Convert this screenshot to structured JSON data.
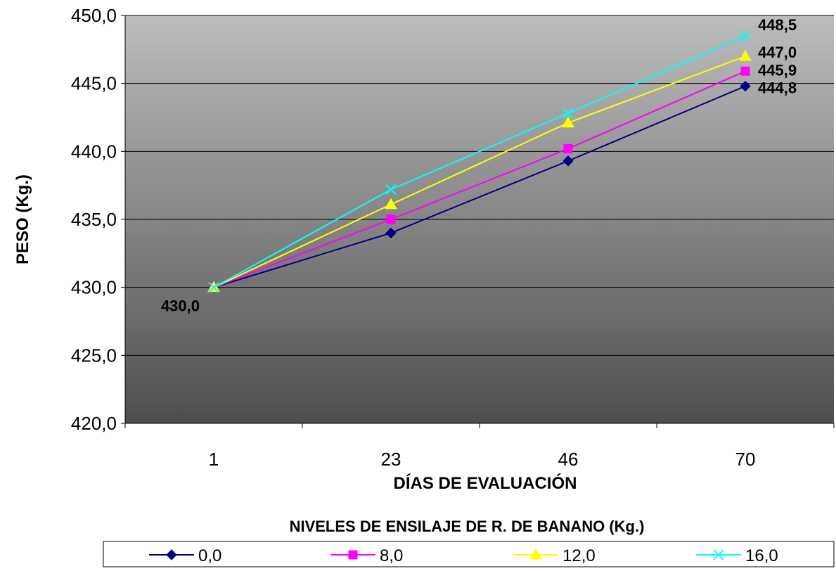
{
  "chart_data": {
    "type": "line",
    "categories": [
      "1",
      "23",
      "46",
      "70"
    ],
    "series": [
      {
        "name": "0,0",
        "values": [
          430.0,
          434.0,
          439.3,
          444.8
        ],
        "color": "#000080",
        "marker": "diamond"
      },
      {
        "name": "8,0",
        "values": [
          430.0,
          435.0,
          440.2,
          445.9
        ],
        "color": "#ff00ff",
        "marker": "square"
      },
      {
        "name": "12,0",
        "values": [
          430.0,
          436.1,
          442.1,
          447.0
        ],
        "color": "#ffff00",
        "marker": "triangle"
      },
      {
        "name": "16,0",
        "values": [
          430.0,
          437.2,
          442.8,
          448.5
        ],
        "color": "#00ffff",
        "marker": "x"
      }
    ],
    "data_labels": [
      {
        "text": "430,0",
        "category": "1",
        "value": 430.0
      },
      {
        "text": "448,5",
        "category": "70",
        "value": 448.5
      },
      {
        "text": "447,0",
        "category": "70",
        "value": 447.0
      },
      {
        "text": "445,9",
        "category": "70",
        "value": 445.9
      },
      {
        "text": "444,8",
        "category": "70",
        "value": 444.8
      }
    ],
    "ylim": [
      420.0,
      450.0
    ],
    "yticks": [
      "420,0",
      "425,0",
      "430,0",
      "435,0",
      "440,0",
      "445,0",
      "450,0"
    ],
    "xlabel": "DÍAS DE EVALUACIÓN",
    "ylabel": "PESO (Kg.)",
    "legend_title": "NIVELES DE ENSILAJE DE R. DE BANANO (Kg.)",
    "legend_position": "bottom",
    "grid": true,
    "plot_background": "gradient gray (light at top, dark at bottom)"
  }
}
